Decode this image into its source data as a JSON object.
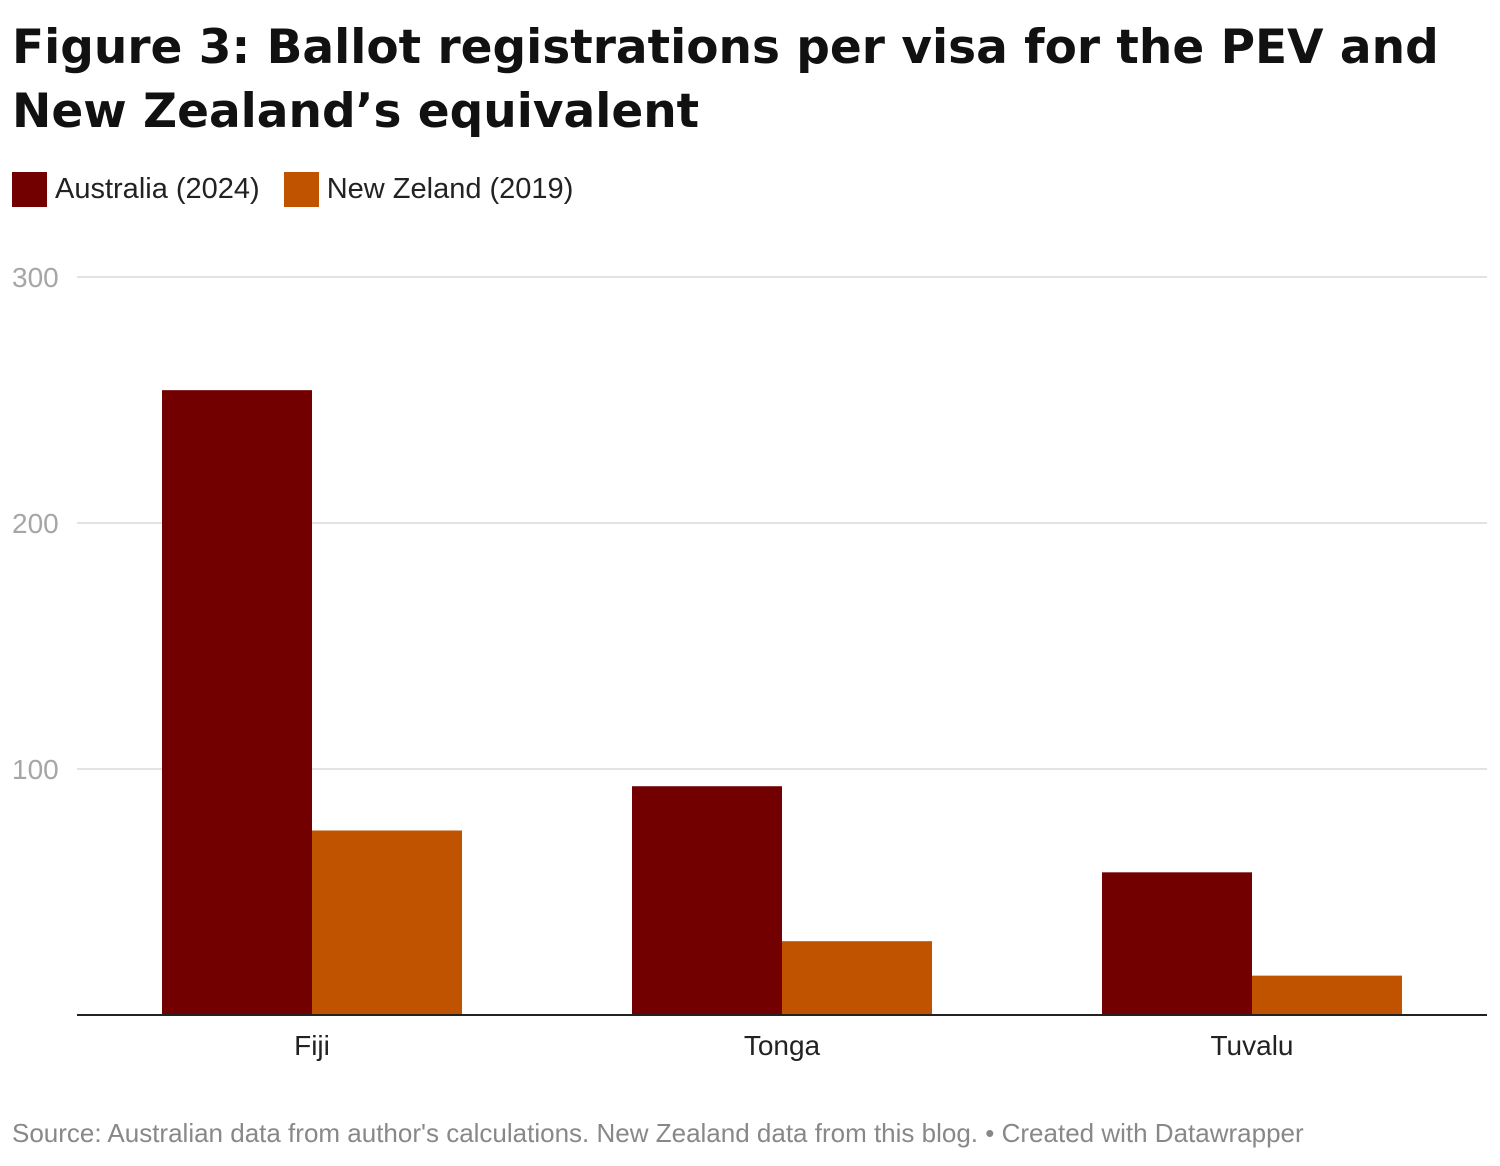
{
  "chart_data": {
    "type": "bar",
    "title": "Figure 3: Ballot registrations per visa for the PEV and New Zealand’s equivalent",
    "categories": [
      "Fiji",
      "Tonga",
      "Tuvalu"
    ],
    "series": [
      {
        "name": "Australia (2024)",
        "color": "#730000",
        "values": [
          254,
          93,
          58
        ]
      },
      {
        "name": "New Zeland (2019)",
        "color": "#bf5300",
        "values": [
          75,
          30,
          16
        ]
      }
    ],
    "yticks": [
      "100",
      "200",
      "300"
    ],
    "ylim": [
      0,
      300
    ],
    "xlabel": "",
    "ylabel": "",
    "grid": true,
    "legend_placement": "top-left"
  },
  "footer": {
    "source": "Source: Australian data from author's calculations. New Zealand data from this blog.",
    "separator": "•",
    "credit": "Created with Datawrapper"
  }
}
